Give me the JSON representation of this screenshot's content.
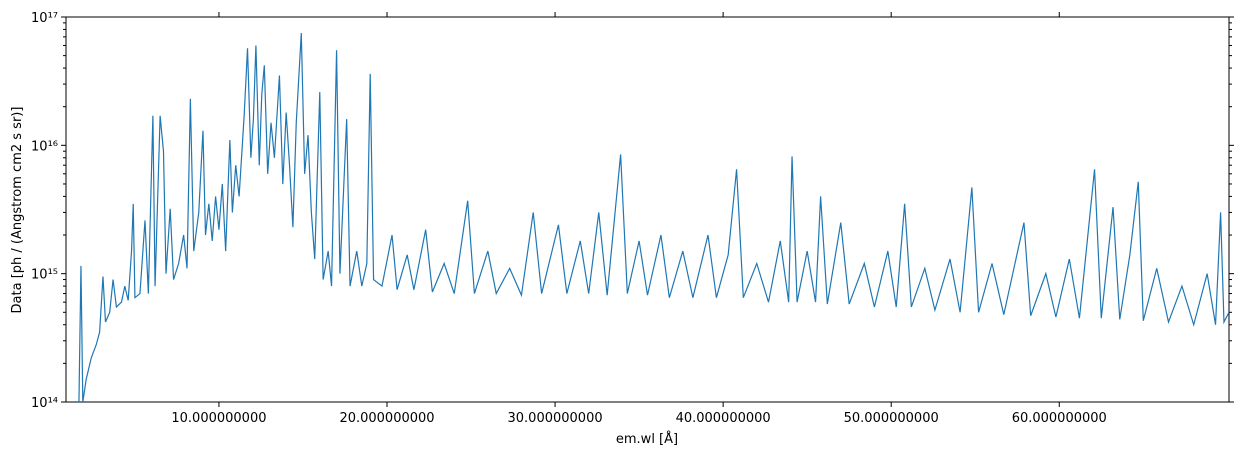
{
  "chart_data": {
    "type": "line",
    "xlabel": "em.wl [Å]",
    "ylabel": "Data [ph / (Angstrom cm2 s sr)]",
    "color": "#1f77b4",
    "yscale": "log",
    "xlim": [
      0.9,
      70.1
    ],
    "ylim": [
      100000000000000.0,
      1e+17
    ],
    "xticks": [
      {
        "value": 10,
        "label": "10.000000000"
      },
      {
        "value": 20,
        "label": "20.000000000"
      },
      {
        "value": 30,
        "label": "30.000000000"
      },
      {
        "value": 40,
        "label": "40.000000000"
      },
      {
        "value": 50,
        "label": "50.000000000"
      },
      {
        "value": 60,
        "label": "60.000000000"
      }
    ],
    "yticks": [
      {
        "value": 100000000000000.0,
        "label": "10¹⁴"
      },
      {
        "value": 1000000000000000.0,
        "label": "10¹⁵"
      },
      {
        "value": 1e+16,
        "label": "10¹⁶"
      },
      {
        "value": 1e+17,
        "label": "10¹⁷"
      }
    ],
    "x": [
      1.67,
      1.79,
      1.9,
      2.1,
      2.4,
      2.7,
      2.9,
      3.1,
      3.25,
      3.5,
      3.7,
      3.9,
      4.2,
      4.4,
      4.6,
      4.8,
      4.9,
      5.0,
      5.3,
      5.6,
      5.8,
      6.07,
      6.2,
      6.5,
      6.7,
      6.85,
      7.1,
      7.3,
      7.6,
      7.9,
      8.1,
      8.3,
      8.5,
      8.8,
      9.05,
      9.2,
      9.4,
      9.6,
      9.8,
      10.0,
      10.2,
      10.4,
      10.65,
      10.8,
      11.0,
      11.2,
      11.5,
      11.7,
      11.9,
      12.05,
      12.2,
      12.4,
      12.55,
      12.7,
      12.9,
      13.1,
      13.3,
      13.6,
      13.8,
      14.0,
      14.2,
      14.4,
      14.6,
      14.9,
      15.1,
      15.3,
      15.5,
      15.7,
      16.0,
      16.2,
      16.5,
      16.7,
      17.0,
      17.2,
      17.6,
      17.8,
      18.2,
      18.5,
      18.8,
      19.0,
      19.2,
      19.7,
      20.3,
      20.6,
      21.2,
      21.6,
      22.3,
      22.7,
      23.4,
      24.0,
      24.8,
      25.2,
      26.0,
      26.5,
      27.3,
      28.0,
      28.7,
      29.2,
      30.2,
      30.7,
      31.5,
      32.0,
      32.6,
      33.1,
      33.9,
      34.3,
      35.0,
      35.5,
      36.3,
      36.8,
      37.6,
      38.2,
      39.1,
      39.6,
      40.3,
      40.8,
      41.2,
      42.0,
      42.7,
      43.4,
      43.9,
      44.1,
      44.4,
      45.0,
      45.5,
      45.8,
      46.2,
      47.0,
      47.5,
      48.4,
      49.0,
      49.8,
      50.3,
      50.8,
      51.2,
      52.0,
      52.6,
      53.5,
      54.1,
      54.8,
      55.2,
      56.0,
      56.7,
      57.3,
      57.9,
      58.3,
      59.2,
      59.8,
      60.6,
      61.2,
      62.1,
      62.5,
      63.2,
      63.6,
      64.2,
      64.7,
      65.0,
      65.8,
      66.5,
      67.3,
      68.0,
      68.8,
      69.3,
      69.6,
      69.8,
      70.1
    ],
    "values": [
      100000000000000.0,
      1150000000000000.0,
      100000000000000.0,
      150000000000000.0,
      220000000000000.0,
      280000000000000.0,
      350000000000000.0,
      950000000000000.0,
      420000000000000.0,
      500000000000000.0,
      900000000000000.0,
      550000000000000.0,
      600000000000000.0,
      800000000000000.0,
      620000000000000.0,
      1500000000000000.0,
      3500000000000000.0,
      650000000000000.0,
      700000000000000.0,
      2600000000000000.0,
      700000000000000.0,
      1.7e+16,
      800000000000000.0,
      1.7e+16,
      9000000000000000.0,
      1000000000000000.0,
      3200000000000000.0,
      900000000000000.0,
      1200000000000000.0,
      2000000000000000.0,
      1100000000000000.0,
      2.3e+16,
      1500000000000000.0,
      3000000000000000.0,
      1.3e+16,
      2000000000000000.0,
      3500000000000000.0,
      1800000000000000.0,
      4000000000000000.0,
      2200000000000000.0,
      5000000000000000.0,
      1500000000000000.0,
      1.1e+16,
      3000000000000000.0,
      7000000000000000.0,
      4000000000000000.0,
      1.7e+16,
      5.7e+16,
      8000000000000000.0,
      1.6e+16,
      6e+16,
      7000000000000000.0,
      2.5e+16,
      4.2e+16,
      6000000000000000.0,
      1.5e+16,
      8000000000000000.0,
      3.5e+16,
      5000000000000000.0,
      1.8e+16,
      7000000000000000.0,
      2300000000000000.0,
      1.5e+16,
      7.5e+16,
      6000000000000000.0,
      1.2e+16,
      3000000000000000.0,
      1300000000000000.0,
      2.6e+16,
      900000000000000.0,
      1500000000000000.0,
      800000000000000.0,
      5.5e+16,
      1000000000000000.0,
      1.6e+16,
      800000000000000.0,
      1500000000000000.0,
      800000000000000.0,
      1200000000000000.0,
      3.6e+16,
      900000000000000.0,
      800000000000000.0,
      2000000000000000.0,
      750000000000000.0,
      1400000000000000.0,
      750000000000000.0,
      2200000000000000.0,
      720000000000000.0,
      1200000000000000.0,
      700000000000000.0,
      3700000000000000.0,
      700000000000000.0,
      1500000000000000.0,
      700000000000000.0,
      1100000000000000.0,
      680000000000000.0,
      3000000000000000.0,
      700000000000000.0,
      2400000000000000.0,
      700000000000000.0,
      1800000000000000.0,
      700000000000000.0,
      3000000000000000.0,
      680000000000000.0,
      8500000000000000.0,
      700000000000000.0,
      1800000000000000.0,
      680000000000000.0,
      2000000000000000.0,
      650000000000000.0,
      1500000000000000.0,
      650000000000000.0,
      2000000000000000.0,
      650000000000000.0,
      1400000000000000.0,
      6500000000000000.0,
      650000000000000.0,
      1200000000000000.0,
      600000000000000.0,
      1800000000000000.0,
      600000000000000.0,
      8200000000000000.0,
      600000000000000.0,
      1500000000000000.0,
      600000000000000.0,
      4000000000000000.0,
      580000000000000.0,
      2500000000000000.0,
      580000000000000.0,
      1200000000000000.0,
      550000000000000.0,
      1500000000000000.0,
      550000000000000.0,
      3500000000000000.0,
      550000000000000.0,
      1100000000000000.0,
      520000000000000.0,
      1300000000000000.0,
      500000000000000.0,
      4700000000000000.0,
      500000000000000.0,
      1200000000000000.0,
      480000000000000.0,
      1100000000000000.0,
      2500000000000000.0,
      470000000000000.0,
      1000000000000000.0,
      460000000000000.0,
      1300000000000000.0,
      450000000000000.0,
      6500000000000000.0,
      450000000000000.0,
      3300000000000000.0,
      440000000000000.0,
      1400000000000000.0,
      5200000000000000.0,
      430000000000000.0,
      1100000000000000.0,
      420000000000000.0,
      800000000000000.0,
      400000000000000.0,
      1000000000000000.0,
      400000000000000.0,
      3000000000000000.0,
      420000000000000.0,
      500000000000000.0
    ]
  }
}
